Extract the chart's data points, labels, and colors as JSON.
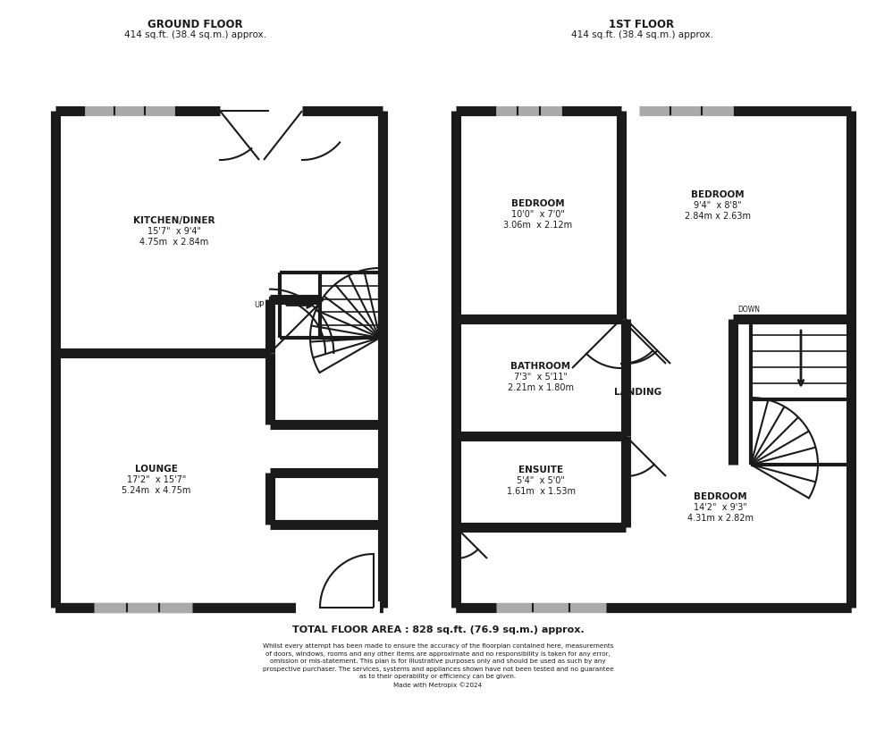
{
  "bg_color": "#ffffff",
  "wall_color": "#1a1a1a",
  "lw_wall": 8,
  "lw_thin": 1.5,
  "lw_medium": 3,
  "ground_floor_title": "GROUND FLOOR",
  "ground_floor_subtitle": "414 sq.ft. (38.4 sq.m.) approx.",
  "first_floor_title": "1ST FLOOR",
  "first_floor_subtitle": "414 sq.ft. (38.4 sq.m.) approx.",
  "total_area": "TOTAL FLOOR AREA : 828 sq.ft. (76.9 sq.m.) approx.",
  "disclaimer": "Whilst every attempt has been made to ensure the accuracy of the floorplan contained here, measurements\nof doors, windows, rooms and any other items are approximate and no responsibility is taken for any error,\nomission or mis-statement. This plan is for illustrative purposes only and should be used as such by any\nprospective purchaser. The services, systems and appliances shown have not been tested and no guarantee\nas to their operability or efficiency can be given.\nMade with Metropix ©2024",
  "rooms": {
    "kitchen_diner": {
      "label": "KITCHEN/DINER",
      "dim1": "15'7\"  x 9'4\"",
      "dim2": "4.75m  x 2.84m"
    },
    "lounge": {
      "label": "LOUNGE",
      "dim1": "17'2\"  x 15'7\"",
      "dim2": "5.24m  x 4.75m"
    },
    "bedroom1": {
      "label": "BEDROOM",
      "dim1": "10'0\"  x 7'0\"",
      "dim2": "3.06m  x 2.12m"
    },
    "bedroom2": {
      "label": "BEDROOM",
      "dim1": "9'4\"  x 8'8\"",
      "dim2": "2.84m x 2.63m"
    },
    "bathroom": {
      "label": "BATHROOM",
      "dim1": "7'3\"  x 5'11\"",
      "dim2": "2.21m x 1.80m"
    },
    "ensuite": {
      "label": "ENSUITE",
      "dim1": "5'4\"  x 5'0\"",
      "dim2": "1.61m  x 1.53m"
    },
    "bedroom3": {
      "label": "BEDROOM",
      "dim1": "14'2\"  x 9'3\"",
      "dim2": "4.31m x 2.82m"
    },
    "landing": {
      "label": "LANDING"
    }
  }
}
